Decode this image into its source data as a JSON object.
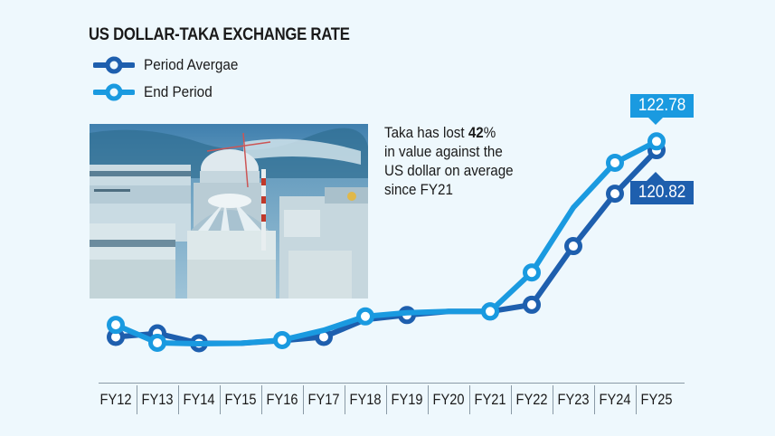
{
  "title": "US DOLLAR-TAKA EXCHANGE RATE",
  "legend": [
    {
      "label": "Period Avergae",
      "color": "#1e5fae"
    },
    {
      "label": "End Period",
      "color": "#1a9ae0"
    }
  ],
  "annotation": {
    "line1_pre": "Taka has lost ",
    "line1_bold": "42",
    "line1_post": "%",
    "line2": "in value against the",
    "line3": "US dollar on average",
    "line4": "since FY21"
  },
  "callouts": {
    "end_period_last": "122.78",
    "period_average_last": "120.82"
  },
  "photo": {
    "description": "nuclear power plant construction site"
  },
  "colors": {
    "background": "#eef8fd",
    "period_average": "#1e5fae",
    "end_period": "#1a9ae0"
  },
  "chart_data": {
    "type": "line",
    "title": "US DOLLAR-TAKA EXCHANGE RATE",
    "xlabel": "",
    "ylabel": "",
    "categories": [
      "FY12",
      "FY13",
      "FY14",
      "FY15",
      "FY16",
      "FY17",
      "FY18",
      "FY19",
      "FY20",
      "FY21",
      "FY22",
      "FY23",
      "FY24",
      "FY25"
    ],
    "series": [
      {
        "name": "Period Avergae",
        "values": [
          79.1,
          79.9,
          77.7,
          77.7,
          78.3,
          79.1,
          83.0,
          84.0,
          84.8,
          84.8,
          86.3,
          99.4,
          111.1,
          120.82
        ],
        "markers": [
          1,
          1,
          1,
          0,
          0,
          1,
          0,
          1,
          0,
          1,
          1,
          1,
          1,
          1
        ]
      },
      {
        "name": "End Period",
        "values": [
          81.8,
          77.8,
          77.6,
          77.7,
          78.4,
          80.6,
          83.7,
          84.5,
          84.8,
          84.8,
          93.5,
          108.0,
          118.0,
          122.78
        ],
        "markers": [
          1,
          1,
          0,
          0,
          1,
          0,
          1,
          0,
          0,
          1,
          1,
          0,
          1,
          1
        ]
      }
    ],
    "data_labels": {
      "End Period FY25": "122.78",
      "Period Avergae FY25": "120.82"
    },
    "ylim": [
      75,
      125
    ],
    "grid": false,
    "legend_position": "top-left"
  }
}
